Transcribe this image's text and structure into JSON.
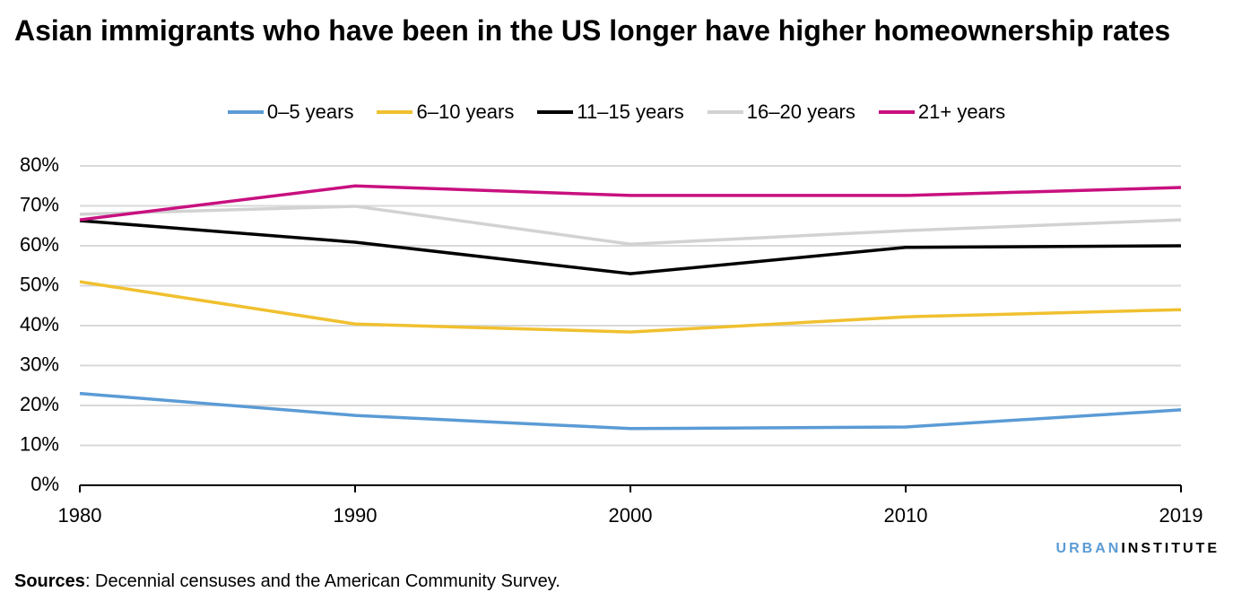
{
  "chart_data": {
    "type": "line",
    "title": "Asian immigrants who have been in the US longer have higher homeownership rates",
    "categories": [
      "1980",
      "1990",
      "2000",
      "2010",
      "2019"
    ],
    "series": [
      {
        "name": "0–5 years",
        "color": "#5b9bd5",
        "values": [
          23,
          17.5,
          14.2,
          14.6,
          18.9
        ]
      },
      {
        "name": "6–10 years",
        "color": "#f0c02f",
        "values": [
          51,
          40.4,
          38.4,
          42.2,
          44
        ]
      },
      {
        "name": "11–15 years",
        "color": "#000000",
        "values": [
          66.3,
          60.9,
          53,
          59.6,
          60
        ]
      },
      {
        "name": "16–20 years",
        "color": "#d2d2d2",
        "values": [
          67.9,
          69.9,
          60.4,
          63.8,
          66.5
        ]
      },
      {
        "name": "21+ years",
        "color": "#c8107f",
        "values": [
          66.5,
          75,
          72.6,
          72.6,
          74.6
        ]
      }
    ],
    "ylim": [
      0,
      80
    ],
    "yticks": [
      {
        "value": 0,
        "label": "0%"
      },
      {
        "value": 10,
        "label": "10%"
      },
      {
        "value": 20,
        "label": "20%"
      },
      {
        "value": 30,
        "label": "30%"
      },
      {
        "value": 40,
        "label": "40%"
      },
      {
        "value": 50,
        "label": "50%"
      },
      {
        "value": 60,
        "label": "60%"
      },
      {
        "value": 70,
        "label": "70%"
      },
      {
        "value": 80,
        "label": "80%"
      }
    ],
    "grid": true,
    "legend": "top",
    "source_label": "Sources",
    "source": ": Decennial censuses and the American Community Survey.",
    "logo": {
      "first": "URBAN",
      "second": "INSTITUTE"
    }
  }
}
